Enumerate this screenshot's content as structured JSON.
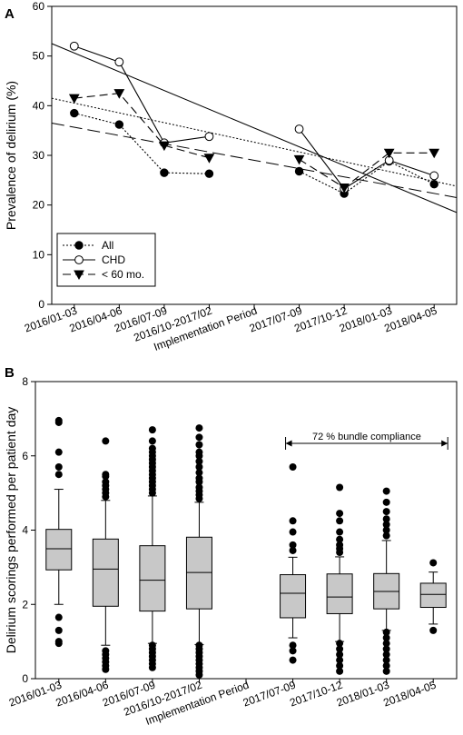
{
  "chart_data": [
    {
      "panel": "A",
      "type": "line",
      "ylabel": "Prevalence of delirium (%)",
      "ylim": [
        0,
        60
      ],
      "yticks": [
        0,
        10,
        20,
        30,
        40,
        50,
        60
      ],
      "categories": [
        "2016/01-03",
        "2016/04-06",
        "2016/07-09",
        "2016/10-2017/02",
        "Implementation Period",
        "2017/07-09",
        "2017/10-12",
        "2018/01-03",
        "2018/04-05"
      ],
      "grid": false,
      "legend_position": "bottom-left",
      "series": [
        {
          "name": "All",
          "marker": "filled-circle",
          "line": "dotted",
          "values": [
            38.5,
            36.2,
            26.5,
            26.3,
            null,
            26.8,
            22.3,
            28.8,
            24.2
          ],
          "trend": [
            41.5,
            23.8
          ]
        },
        {
          "name": "CHD",
          "marker": "open-circle",
          "line": "solid",
          "values": [
            52.0,
            48.8,
            32.5,
            33.8,
            null,
            35.3,
            23.3,
            29.0,
            25.9
          ],
          "trend": [
            52.5,
            18.5
          ]
        },
        {
          "name": "< 60 mo.",
          "marker": "filled-triangle-down",
          "line": "dashed",
          "values": [
            41.5,
            42.5,
            32.0,
            29.5,
            null,
            29.2,
            23.5,
            30.5,
            30.5
          ],
          "trend": [
            36.5,
            21.5
          ]
        }
      ]
    },
    {
      "panel": "B",
      "type": "box",
      "ylabel": "Delirium scorings performed per patient day",
      "ylim": [
        0,
        8
      ],
      "yticks": [
        0,
        2,
        4,
        6,
        8
      ],
      "categories": [
        "2016/01-03",
        "2016/04-06",
        "2016/07-09",
        "2016/10-2017/02",
        "Implementation Period",
        "2017/07-09",
        "2017/10-12",
        "2018/01-03",
        "2018/04-05"
      ],
      "annotation": {
        "text": "72 % bundle compliance",
        "from": "2017/07-09",
        "to": "2018/04-05"
      },
      "boxes": [
        {
          "q1": 2.93,
          "median": 3.5,
          "q3": 4.02,
          "whisker_low": 2.0,
          "whisker_high": 5.1,
          "p5": 1.6,
          "p95": 5.6,
          "outliers": [
            1.0,
            0.95,
            1.3,
            1.65,
            6.1,
            6.9,
            6.95,
            5.7,
            5.5
          ]
        },
        {
          "q1": 1.95,
          "median": 2.95,
          "q3": 3.76,
          "whisker_low": 0.9,
          "whisker_high": 4.8,
          "p5": 0.95,
          "p95": 4.85,
          "outliers": [
            0.25,
            0.35,
            0.45,
            0.55,
            0.65,
            0.75,
            4.9,
            5.0,
            5.1,
            5.2,
            5.3,
            5.45,
            5.5,
            6.4
          ]
        },
        {
          "q1": 1.82,
          "median": 2.65,
          "q3": 3.58,
          "whisker_low": 0.95,
          "whisker_high": 4.92,
          "p5": 1.0,
          "p95": 4.95,
          "outliers": [
            0.3,
            0.4,
            0.5,
            0.6,
            0.7,
            0.8,
            0.9,
            5.0,
            5.1,
            5.2,
            5.3,
            5.4,
            5.5,
            5.6,
            5.7,
            5.8,
            5.9,
            6.0,
            6.1,
            6.2,
            6.4,
            6.7
          ]
        },
        {
          "q1": 1.88,
          "median": 2.86,
          "q3": 3.81,
          "whisker_low": 0.92,
          "whisker_high": 4.75,
          "p5": 0.95,
          "p95": 4.8,
          "outliers": [
            0.1,
            0.2,
            0.3,
            0.4,
            0.5,
            0.6,
            0.7,
            0.8,
            0.9,
            4.85,
            4.95,
            5.05,
            5.15,
            5.3,
            5.4,
            5.55,
            5.7,
            5.85,
            6.0,
            6.1,
            6.3,
            6.5,
            6.75
          ]
        },
        null,
        {
          "q1": 1.64,
          "median": 2.3,
          "q3": 2.8,
          "whisker_low": 1.1,
          "whisker_high": 3.27,
          "p5": 1.1,
          "p95": 3.3,
          "outliers": [
            0.5,
            0.75,
            0.9,
            3.45,
            3.6,
            3.95,
            4.25,
            5.7
          ]
        },
        {
          "q1": 1.75,
          "median": 2.2,
          "q3": 2.82,
          "whisker_low": 1.0,
          "whisker_high": 3.28,
          "p5": 1.0,
          "p95": 3.3,
          "outliers": [
            0.2,
            0.35,
            0.5,
            0.65,
            0.8,
            0.95,
            3.4,
            3.5,
            3.6,
            3.75,
            3.95,
            4.25,
            4.45,
            5.15
          ]
        },
        {
          "q1": 1.88,
          "median": 2.35,
          "q3": 2.83,
          "whisker_low": 1.3,
          "whisker_high": 3.72,
          "p5": 1.3,
          "p95": 3.75,
          "outliers": [
            0.2,
            0.35,
            0.5,
            0.65,
            0.8,
            0.95,
            1.1,
            1.25,
            3.85,
            4.0,
            4.15,
            4.3,
            4.5,
            4.75,
            5.05
          ]
        },
        {
          "q1": 1.92,
          "median": 2.27,
          "q3": 2.57,
          "whisker_low": 1.47,
          "whisker_high": 2.87,
          "p5": 1.5,
          "p95": 2.9,
          "outliers": [
            1.3,
            3.12
          ]
        }
      ]
    }
  ]
}
